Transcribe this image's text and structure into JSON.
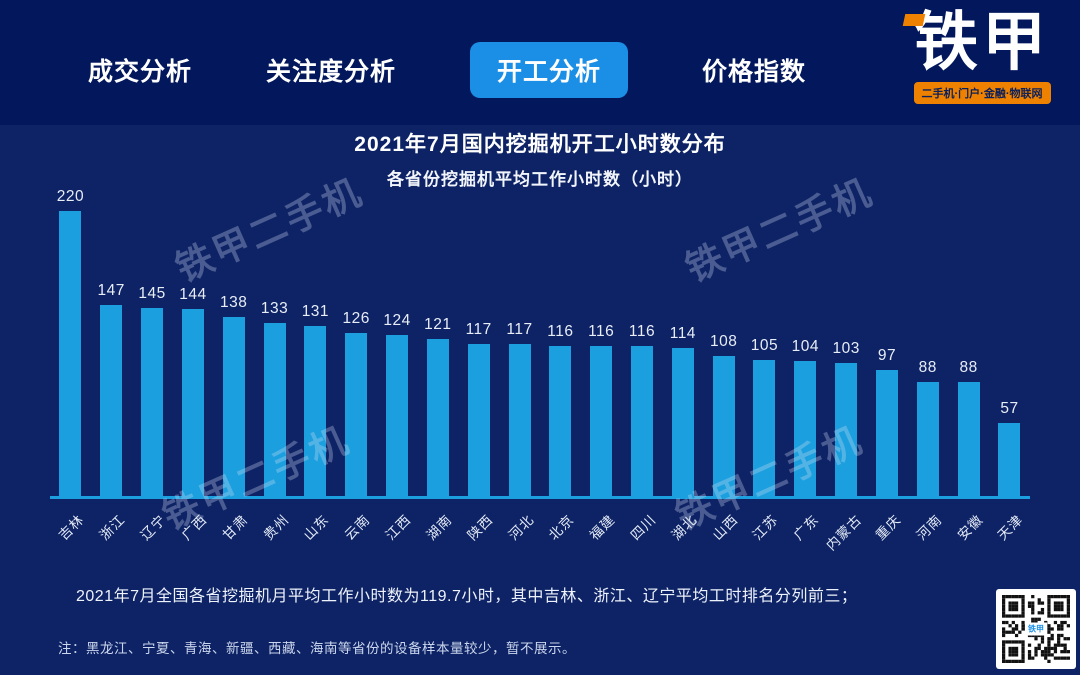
{
  "header": {
    "tabs": [
      {
        "label": "成交分析",
        "active": false
      },
      {
        "label": "关注度分析",
        "active": false
      },
      {
        "label": "开工分析",
        "active": true
      },
      {
        "label": "价格指数",
        "active": false
      }
    ],
    "logo": {
      "text": "铁甲",
      "badge": "二手机·门户·金融·物联网"
    }
  },
  "title": "2021年7月国内挖掘机开工小时数分布",
  "subtitle": "各省份挖掘机平均工作小时数（小时）",
  "watermark": {
    "text": "铁甲二手机"
  },
  "chart_data": {
    "type": "bar",
    "title": "2021年7月国内挖掘机开工小时数分布",
    "subtitle": "各省份挖掘机平均工作小时数（小时）",
    "categories": [
      "吉林",
      "浙江",
      "辽宁",
      "广西",
      "甘肃",
      "贵州",
      "山东",
      "云南",
      "江西",
      "湖南",
      "陕西",
      "河北",
      "北京",
      "福建",
      "四川",
      "湖北",
      "山西",
      "江苏",
      "广东",
      "内蒙古",
      "重庆",
      "河南",
      "安徽",
      "天津"
    ],
    "values": [
      220,
      147,
      145,
      144,
      138,
      133,
      131,
      126,
      124,
      121,
      117,
      117,
      116,
      116,
      116,
      114,
      108,
      105,
      104,
      103,
      97,
      88,
      88,
      57
    ],
    "xlabel": "",
    "ylabel": "",
    "ylim": [
      0,
      220
    ],
    "grid": false,
    "legend": false,
    "value_labels": true
  },
  "footer": {
    "summary": "2021年7月全国各省挖掘机月平均工作小时数为119.7小时，其中吉林、浙江、辽宁平均工时排名分列前三；",
    "note": "注：黑龙江、宁夏、青海、新疆、西藏、海南等省份的设备样本量较少，暂不展示。"
  },
  "qr": {
    "center_label": "铁甲"
  },
  "colors": {
    "header_bg": "#02175c",
    "body_bg": "#0d2366",
    "bar_color": "#1b9fdf",
    "accent_blue": "#1b8fe6",
    "brand_orange": "#ee8200"
  }
}
